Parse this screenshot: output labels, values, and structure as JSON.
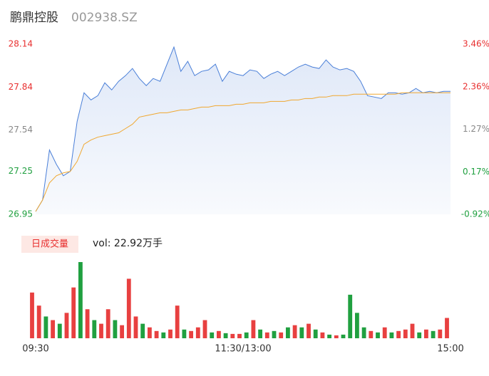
{
  "header": {
    "name": "鹏鼎控股",
    "code": "002938.SZ"
  },
  "chart_data": [
    {
      "type": "line",
      "ylim": [
        26.95,
        28.14
      ],
      "yticks": [
        28.14,
        27.84,
        27.54,
        27.25,
        26.95
      ],
      "ytick_colors": [
        "#e83030",
        "#e83030",
        "#888888",
        "#20a040",
        "#20a040"
      ],
      "y2lim": [
        -0.92,
        3.46
      ],
      "y2ticks": [
        {
          "value": 3.46,
          "label": "3.46%"
        },
        {
          "value": 2.36,
          "label": "2.36%"
        },
        {
          "value": 1.27,
          "label": "1.27%"
        },
        {
          "value": 0.17,
          "label": "0.17%"
        },
        {
          "value": -0.92,
          "label": "-0.92%"
        }
      ],
      "xlim": [
        0,
        240
      ],
      "xticks": [
        {
          "value": 0,
          "label": "09:30"
        },
        {
          "value": 120,
          "label": "11:30/13:00"
        },
        {
          "value": 240,
          "label": "15:00"
        }
      ],
      "series": [
        {
          "color": "#4a7fd8",
          "values": [
            26.97,
            27.05,
            27.4,
            27.3,
            27.22,
            27.25,
            27.6,
            27.8,
            27.75,
            27.78,
            27.87,
            27.82,
            27.88,
            27.92,
            27.97,
            27.9,
            27.85,
            27.9,
            27.88,
            28.0,
            28.12,
            27.95,
            28.02,
            27.92,
            27.95,
            27.96,
            28.0,
            27.88,
            27.95,
            27.93,
            27.92,
            27.96,
            27.95,
            27.9,
            27.93,
            27.95,
            27.92,
            27.95,
            27.98,
            28.0,
            27.98,
            27.97,
            28.03,
            27.98,
            27.96,
            27.97,
            27.95,
            27.88,
            27.78,
            27.77,
            27.76,
            27.8,
            27.8,
            27.79,
            27.8,
            27.83,
            27.8,
            27.81,
            27.8,
            27.81,
            27.81
          ]
        },
        {
          "color": "#f0a830",
          "values": [
            26.97,
            27.05,
            27.17,
            27.22,
            27.24,
            27.25,
            27.32,
            27.44,
            27.47,
            27.49,
            27.5,
            27.51,
            27.52,
            27.55,
            27.58,
            27.63,
            27.64,
            27.65,
            27.66,
            27.66,
            27.67,
            27.68,
            27.68,
            27.69,
            27.7,
            27.7,
            27.71,
            27.71,
            27.71,
            27.72,
            27.72,
            27.73,
            27.73,
            27.73,
            27.74,
            27.74,
            27.74,
            27.75,
            27.75,
            27.76,
            27.76,
            27.77,
            27.77,
            27.78,
            27.78,
            27.78,
            27.79,
            27.79,
            27.79,
            27.79,
            27.79,
            27.79,
            27.79,
            27.8,
            27.8,
            27.8,
            27.8,
            27.8,
            27.8,
            27.8,
            27.8
          ]
        }
      ]
    },
    {
      "type": "bar",
      "legend": "日成交量",
      "label": "vol: 22.92万手",
      "values": [
        63,
        45,
        30,
        25,
        20,
        35,
        70,
        105,
        40,
        25,
        20,
        40,
        25,
        18,
        82,
        30,
        20,
        15,
        10,
        8,
        12,
        45,
        12,
        10,
        15,
        25,
        8,
        10,
        7,
        6,
        6,
        8,
        25,
        12,
        8,
        10,
        8,
        15,
        18,
        15,
        20,
        12,
        8,
        5,
        4,
        5,
        60,
        35,
        15,
        10,
        8,
        15,
        8,
        10,
        12,
        20,
        8,
        12,
        10,
        12,
        28
      ],
      "colors": [
        "r",
        "r",
        "g",
        "r",
        "g",
        "r",
        "r",
        "g",
        "r",
        "g",
        "r",
        "r",
        "g",
        "r",
        "r",
        "r",
        "g",
        "r",
        "r",
        "g",
        "r",
        "r",
        "g",
        "r",
        "r",
        "r",
        "g",
        "r",
        "g",
        "r",
        "r",
        "g",
        "r",
        "g",
        "r",
        "g",
        "r",
        "g",
        "r",
        "g",
        "r",
        "g",
        "r",
        "g",
        "r",
        "g",
        "g",
        "g",
        "g",
        "r",
        "g",
        "r",
        "g",
        "r",
        "r",
        "r",
        "g",
        "r",
        "g",
        "r",
        "r"
      ]
    }
  ]
}
